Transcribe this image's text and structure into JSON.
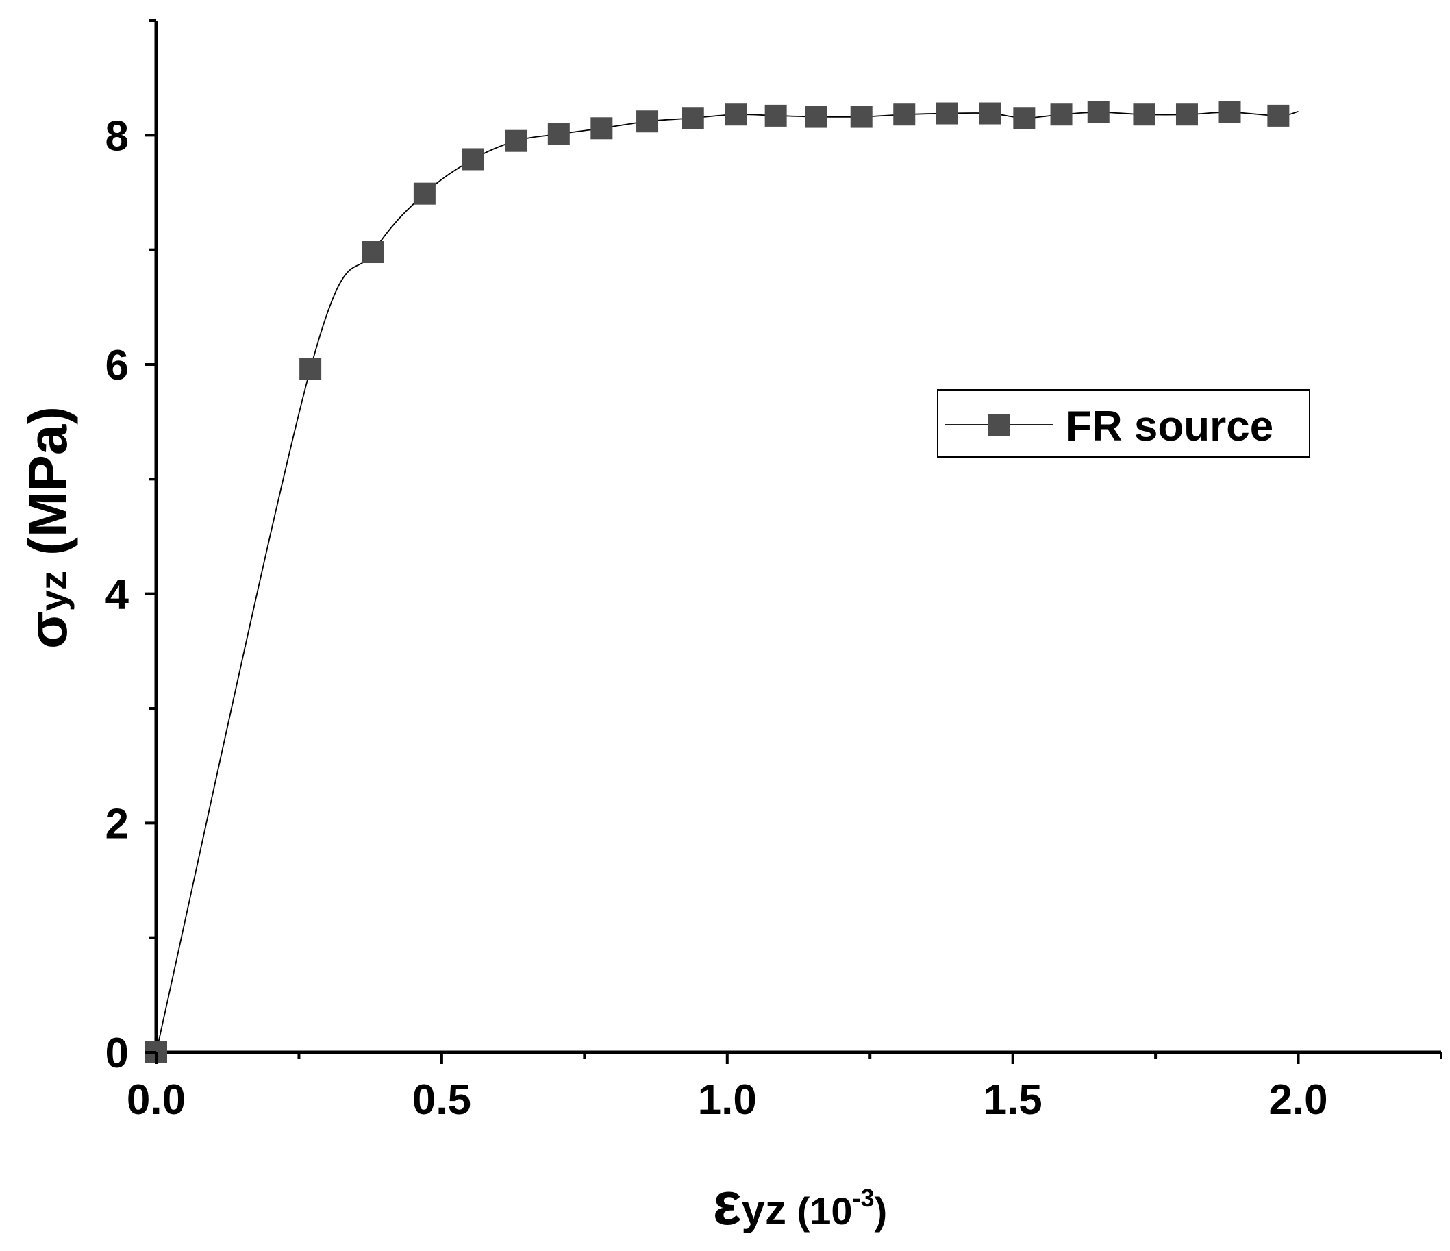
{
  "chart_data": {
    "type": "line",
    "xlabel": {
      "symbol": "ε",
      "subscript": "yz",
      "unit_prefix": " (10",
      "unit_exponent": "-3",
      "unit_suffix": ")"
    },
    "ylabel": {
      "symbol": "σ",
      "subscript": "yz",
      "unit": " (MPa)"
    },
    "xlim": [
      0,
      2.25
    ],
    "ylim": [
      0,
      9
    ],
    "x_ticks": [
      0.0,
      0.5,
      1.0,
      1.5,
      2.0
    ],
    "x_tick_labels": [
      "0.0",
      "0.5",
      "1.0",
      "1.5",
      "2.0"
    ],
    "y_ticks": [
      0,
      2,
      4,
      6,
      8
    ],
    "y_tick_labels": [
      "0",
      "2",
      "4",
      "6",
      "8"
    ],
    "grid": false,
    "legend_position": "right",
    "series": [
      {
        "name": "FR source",
        "color": "#4d4d4d",
        "line_color": "#000000",
        "marker": "square",
        "x": [
          0.0,
          0.27,
          0.38,
          0.47,
          0.555,
          0.63,
          0.705,
          0.78,
          0.86,
          0.94,
          1.015,
          1.085,
          1.155,
          1.235,
          1.31,
          1.385,
          1.46,
          1.52,
          1.585,
          1.65,
          1.73,
          1.805,
          1.88,
          1.965
        ],
        "values": [
          0.0,
          5.96,
          6.98,
          7.49,
          7.79,
          7.95,
          8.01,
          8.06,
          8.12,
          8.15,
          8.18,
          8.17,
          8.16,
          8.16,
          8.18,
          8.19,
          8.19,
          8.15,
          8.18,
          8.2,
          8.18,
          8.18,
          8.2,
          8.17
        ]
      }
    ]
  }
}
